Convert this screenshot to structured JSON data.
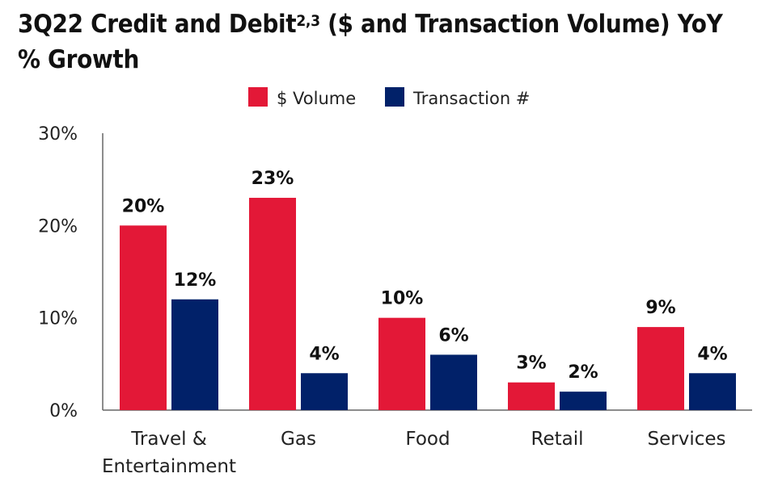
{
  "chart_data": {
    "type": "bar",
    "title": "3Q22 Credit and Debit",
    "title_superscript": "2,3",
    "title_rest": " ($ and Transaction Volume) YoY % Growth",
    "categories": [
      [
        "Travel &",
        "Entertainment"
      ],
      [
        "Gas"
      ],
      [
        "Food"
      ],
      [
        "Retail"
      ],
      [
        "Services"
      ]
    ],
    "series": [
      {
        "name": "$ Volume",
        "color": "#E31837",
        "values": [
          20,
          23,
          10,
          3,
          9
        ],
        "labels": [
          "20%",
          "23%",
          "10%",
          "3%",
          "9%"
        ]
      },
      {
        "name": "Transaction #",
        "color": "#012169",
        "values": [
          12,
          4,
          6,
          2,
          4
        ],
        "labels": [
          "12%",
          "4%",
          "6%",
          "2%",
          "4%"
        ]
      }
    ],
    "ylim": [
      0,
      30
    ],
    "yticks": [
      0,
      10,
      20,
      30
    ],
    "ytick_labels": [
      "0%",
      "10%",
      "20%",
      "30%"
    ],
    "xlabel": "",
    "ylabel": "",
    "grid": false,
    "legend": "top-center"
  }
}
